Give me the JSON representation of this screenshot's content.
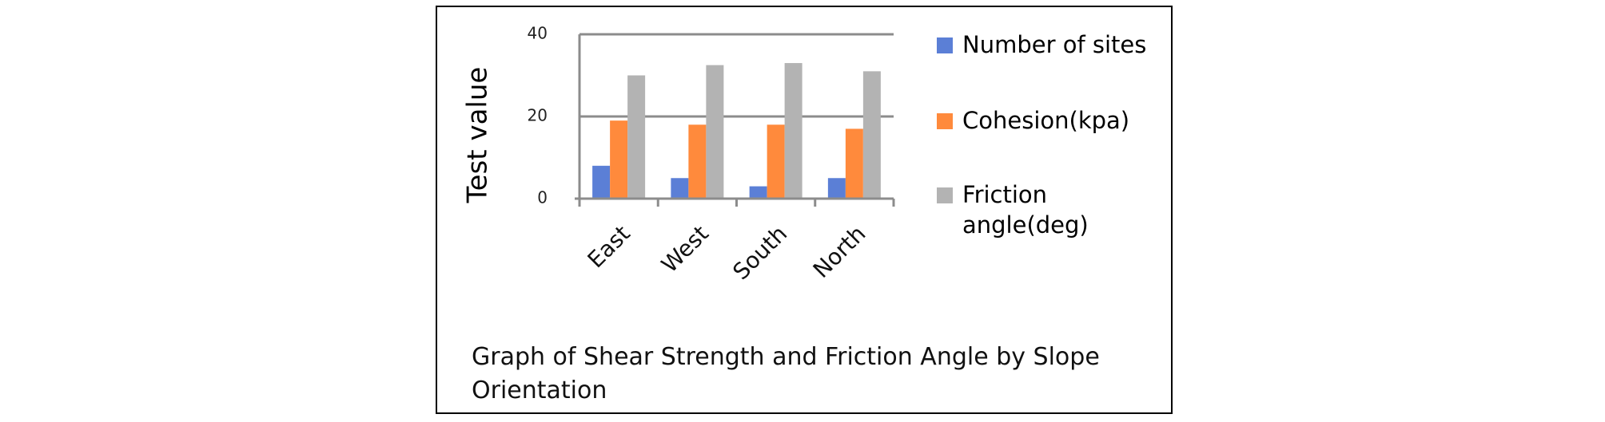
{
  "chart_data": {
    "type": "bar",
    "categories": [
      "East",
      "West",
      "South",
      "North"
    ],
    "series": [
      {
        "name": "Number of sites",
        "color": "#5b7fd6",
        "values": [
          8,
          5,
          3,
          5
        ]
      },
      {
        "name": "Cohesion(kpa)",
        "color": "#ff8a3c",
        "values": [
          19,
          18,
          18,
          17
        ]
      },
      {
        "name": "Friction angle(deg)",
        "color": "#b3b3b3",
        "values": [
          30,
          32.5,
          33,
          31
        ]
      }
    ],
    "ylabel": "Test value",
    "xlabel": "",
    "ylim": [
      0,
      40
    ],
    "yticks": [
      0,
      20,
      40
    ],
    "grid": true,
    "legend_position": "right",
    "caption": "Graph of Shear Strength and Friction Angle by Slope Orientation"
  }
}
